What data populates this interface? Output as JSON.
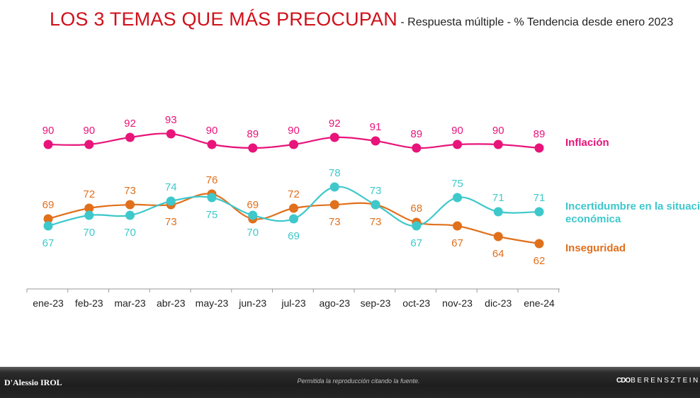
{
  "title": {
    "main": "LOS 3 TEMAS QUE MÁS PREOCUPAN",
    "sub": "- Respuesta múltiple - % Tendencia desde enero 2023"
  },
  "chart_data": {
    "type": "line",
    "categories": [
      "ene-23",
      "feb-23",
      "mar-23",
      "abr-23",
      "may-23",
      "jun-23",
      "jul-23",
      "ago-23",
      "sep-23",
      "oct-23",
      "nov-23",
      "dic-23",
      "ene-24"
    ],
    "series": [
      {
        "name": "Inflación",
        "legend": [
          "Inflación"
        ],
        "color": "#e8147a",
        "labelPos": "above",
        "values": [
          90,
          90,
          92,
          93,
          90,
          89,
          90,
          92,
          91,
          89,
          90,
          90,
          89
        ]
      },
      {
        "name": "Incertidumbre en la situación económica",
        "legend": [
          "Incertidumbre en la situación",
          "económica"
        ],
        "color": "#3ec8cc",
        "labelPos": [
          "below",
          "below",
          "below",
          "above",
          "below",
          "below",
          "below",
          "above",
          "above",
          "below",
          "above",
          "above",
          "above"
        ],
        "values": [
          67,
          70,
          70,
          74,
          75,
          70,
          69,
          78,
          73,
          67,
          75,
          71,
          71
        ]
      },
      {
        "name": "Inseguridad",
        "legend": [
          "Inseguridad"
        ],
        "color": "#e0701c",
        "labelPos": [
          "above",
          "above",
          "above",
          "below",
          "above",
          "above",
          "above",
          "below",
          "below",
          "above",
          "below",
          "below",
          "below"
        ],
        "values": [
          69,
          72,
          73,
          73,
          76,
          69,
          72,
          73,
          73,
          68,
          67,
          64,
          62
        ]
      }
    ],
    "ylim": [
      55,
      100
    ],
    "xlabel": "",
    "ylabel": ""
  },
  "footer": {
    "left": "D'Alessio IROL",
    "center": "Permitida la reproducción citando la fuente.",
    "right_mark": "CDO",
    "right_text": "BERENSZTEIN"
  }
}
